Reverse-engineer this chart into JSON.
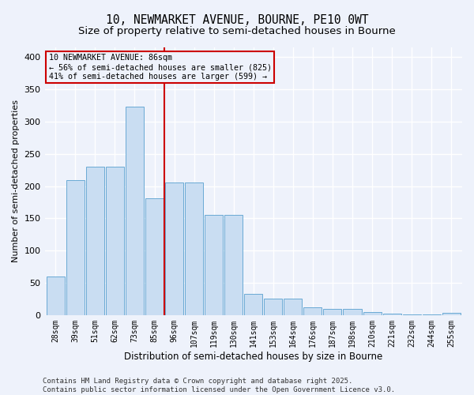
{
  "title": "10, NEWMARKET AVENUE, BOURNE, PE10 0WT",
  "subtitle": "Size of property relative to semi-detached houses in Bourne",
  "xlabel": "Distribution of semi-detached houses by size in Bourne",
  "ylabel": "Number of semi-detached properties",
  "categories": [
    "28sqm",
    "39sqm",
    "51sqm",
    "62sqm",
    "73sqm",
    "85sqm",
    "96sqm",
    "107sqm",
    "119sqm",
    "130sqm",
    "141sqm",
    "153sqm",
    "164sqm",
    "176sqm",
    "187sqm",
    "198sqm",
    "210sqm",
    "221sqm",
    "232sqm",
    "244sqm",
    "255sqm"
  ],
  "values": [
    60,
    209,
    230,
    230,
    323,
    181,
    206,
    206,
    155,
    155,
    33,
    25,
    25,
    12,
    9,
    9,
    5,
    2,
    1,
    1,
    3
  ],
  "bar_color": "#c9ddf2",
  "bar_edge_color": "#6aaad4",
  "background_color": "#eef2fb",
  "grid_color": "#ffffff",
  "vline_color": "#cc0000",
  "annotation_box_text": "10 NEWMARKET AVENUE: 86sqm\n← 56% of semi-detached houses are smaller (825)\n41% of semi-detached houses are larger (599) →",
  "annotation_box_color": "#cc0000",
  "footer_line1": "Contains HM Land Registry data © Crown copyright and database right 2025.",
  "footer_line2": "Contains public sector information licensed under the Open Government Licence v3.0.",
  "ylim": [
    0,
    415
  ],
  "title_fontsize": 10.5,
  "subtitle_fontsize": 9.5,
  "xlabel_fontsize": 8.5,
  "ylabel_fontsize": 8,
  "tick_fontsize": 7,
  "footer_fontsize": 6.5
}
